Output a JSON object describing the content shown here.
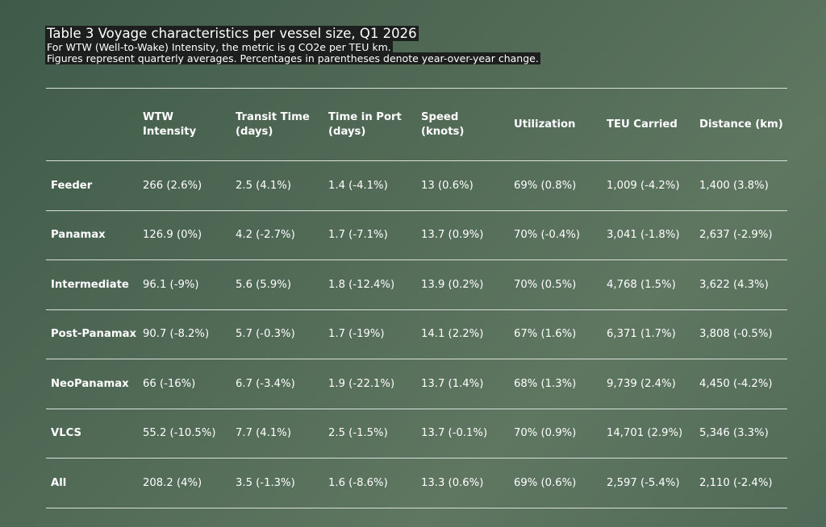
{
  "header": {
    "title": "Table 3 Voyage characteristics per vessel size, Q1 2026",
    "subtitle_1": "For WTW (Well-to-Wake) Intensity, the metric is g CO2e per TEU km.",
    "subtitle_2": "Figures represent quarterly averages. Percentages in parentheses denote year-over-year change."
  },
  "table": {
    "columns": [
      [
        "WTW",
        "Intensity"
      ],
      [
        "Transit Time",
        "(days)"
      ],
      [
        "Time in Port",
        "(days)"
      ],
      [
        "Speed",
        "(knots)"
      ],
      [
        "Utilization"
      ],
      [
        "TEU Carried"
      ],
      [
        "Distance (km)"
      ]
    ],
    "rows": [
      {
        "label": "Feeder",
        "cells": [
          "266 (2.6%)",
          "2.5 (4.1%)",
          "1.4 (-4.1%)",
          "13 (0.6%)",
          "69% (0.8%)",
          "1,009 (-4.2%)",
          "1,400 (3.8%)"
        ]
      },
      {
        "label": "Panamax",
        "cells": [
          "126.9 (0%)",
          "4.2 (-2.7%)",
          "1.7 (-7.1%)",
          "13.7 (0.9%)",
          "70% (-0.4%)",
          "3,041 (-1.8%)",
          "2,637 (-2.9%)"
        ]
      },
      {
        "label": "Intermediate",
        "cells": [
          "96.1 (-9%)",
          "5.6 (5.9%)",
          "1.8 (-12.4%)",
          "13.9 (0.2%)",
          "70% (0.5%)",
          "4,768 (1.5%)",
          "3,622 (4.3%)"
        ]
      },
      {
        "label": "Post-Panamax",
        "cells": [
          "90.7 (-8.2%)",
          "5.7 (-0.3%)",
          "1.7 (-19%)",
          "14.1 (2.2%)",
          "67% (1.6%)",
          "6,371 (1.7%)",
          "3,808 (-0.5%)"
        ]
      },
      {
        "label": "NeoPanamax",
        "cells": [
          "66 (-16%)",
          "6.7 (-3.4%)",
          "1.9 (-22.1%)",
          "13.7 (1.4%)",
          "68% (1.3%)",
          "9,739 (2.4%)",
          "4,450 (-4.2%)"
        ]
      },
      {
        "label": "VLCS",
        "cells": [
          "55.2 (-10.5%)",
          "7.7 (4.1%)",
          "2.5 (-1.5%)",
          "13.7 (-0.1%)",
          "70% (0.9%)",
          "14,701 (2.9%)",
          "5,346 (3.3%)"
        ]
      },
      {
        "label": "All",
        "cells": [
          "208.2 (4%)",
          "3.5 (-1.3%)",
          "1.6 (-8.6%)",
          "13.3 (0.6%)",
          "69% (0.6%)",
          "2,597 (-5.4%)",
          "2,110 (-2.4%)"
        ]
      }
    ]
  }
}
